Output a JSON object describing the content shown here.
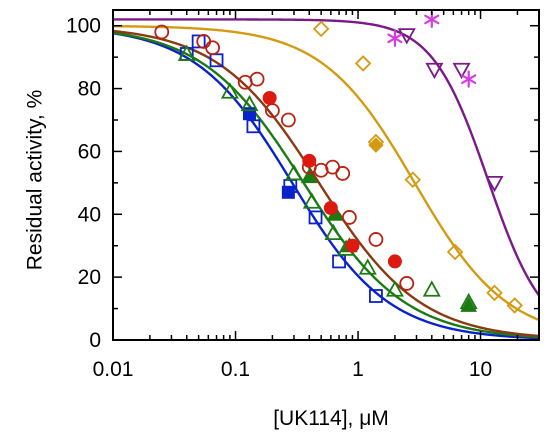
{
  "chart_data": {
    "type": "scatter",
    "title": "",
    "xlabel": "[UK114], μM",
    "ylabel": "Residual activity, %",
    "xscale": "log",
    "xlim": [
      0.01,
      30
    ],
    "ylim": [
      0,
      105
    ],
    "xtick_values": [
      0.01,
      0.1,
      1,
      10
    ],
    "xtick_labels": [
      "0.01",
      "0.1",
      "1",
      "10"
    ],
    "ytick_values": [
      0,
      20,
      40,
      60,
      80,
      100
    ],
    "ytick_labels": [
      "0",
      "20",
      "40",
      "60",
      "80",
      "100"
    ],
    "grid": false,
    "legend": "none",
    "fitted_curves": [
      {
        "color": "#0a22cc",
        "top": 100,
        "ic50": 0.29,
        "hill": 1.1
      },
      {
        "color": "#1c7a12",
        "top": 100,
        "ic50": 0.36,
        "hill": 1.05
      },
      {
        "color": "#8a3a12",
        "top": 100,
        "ic50": 0.48,
        "hill": 1.05
      },
      {
        "color": "#d49a12",
        "top": 100,
        "ic50": 2.9,
        "hill": 1.15
      },
      {
        "color": "#7a1a88",
        "top": 102,
        "ic50": 11.5,
        "hill": 1.9
      }
    ],
    "series": [
      {
        "marker": "square-open",
        "color": "#0a22cc",
        "x": [
          0.04,
          0.05,
          0.07,
          0.14,
          0.28,
          0.45,
          0.7,
          1.4
        ],
        "y": [
          91,
          95,
          89,
          68,
          49,
          39,
          25,
          14
        ]
      },
      {
        "marker": "square-filled",
        "color": "#0a22cc",
        "x": [
          0.13,
          0.27
        ],
        "y": [
          72,
          47
        ]
      },
      {
        "marker": "triangle-open",
        "color": "#1c7a12",
        "x": [
          0.04,
          0.09,
          0.13,
          0.3,
          0.42,
          0.63,
          0.8,
          1.2,
          2.0,
          4.0,
          8.0
        ],
        "y": [
          91,
          79,
          75,
          53,
          44,
          34,
          29,
          23,
          16,
          16,
          12
        ]
      },
      {
        "marker": "triangle-filled",
        "color": "#1c7a12",
        "x": [
          0.4,
          0.65,
          0.85,
          8.0
        ],
        "y": [
          52,
          40,
          30,
          11
        ]
      },
      {
        "marker": "circle-open",
        "color": "#b82212",
        "x": [
          0.025,
          0.055,
          0.065,
          0.12,
          0.15,
          0.2,
          0.27,
          0.4,
          0.5,
          0.62,
          0.75,
          0.85,
          1.4,
          2.5
        ],
        "y": [
          98,
          95,
          93,
          82,
          83,
          73,
          70,
          55,
          54,
          55,
          53,
          39,
          32,
          18
        ]
      },
      {
        "marker": "circle-filled",
        "color": "#dd1a10",
        "x": [
          0.19,
          0.4,
          0.6,
          0.9,
          2.0
        ],
        "y": [
          77,
          57,
          42,
          30,
          25
        ]
      },
      {
        "marker": "diamond-open",
        "color": "#d49a12",
        "x": [
          0.5,
          1.1,
          1.4,
          2.8,
          6.2,
          13,
          19
        ],
        "y": [
          99,
          88,
          63,
          51,
          28,
          15,
          11
        ]
      },
      {
        "marker": "diamond-filled",
        "color": "#d49a12",
        "x": [
          1.4
        ],
        "y": [
          62
        ]
      },
      {
        "marker": "triangle-down-open",
        "color": "#7a1a88",
        "x": [
          2.5,
          4.2,
          7.0,
          13
        ],
        "y": [
          97,
          86,
          86,
          50
        ]
      },
      {
        "marker": "asterisk",
        "color": "#d63ce0",
        "x": [
          2.0,
          4.0,
          8.0
        ],
        "y": [
          96,
          102,
          83
        ]
      }
    ]
  }
}
